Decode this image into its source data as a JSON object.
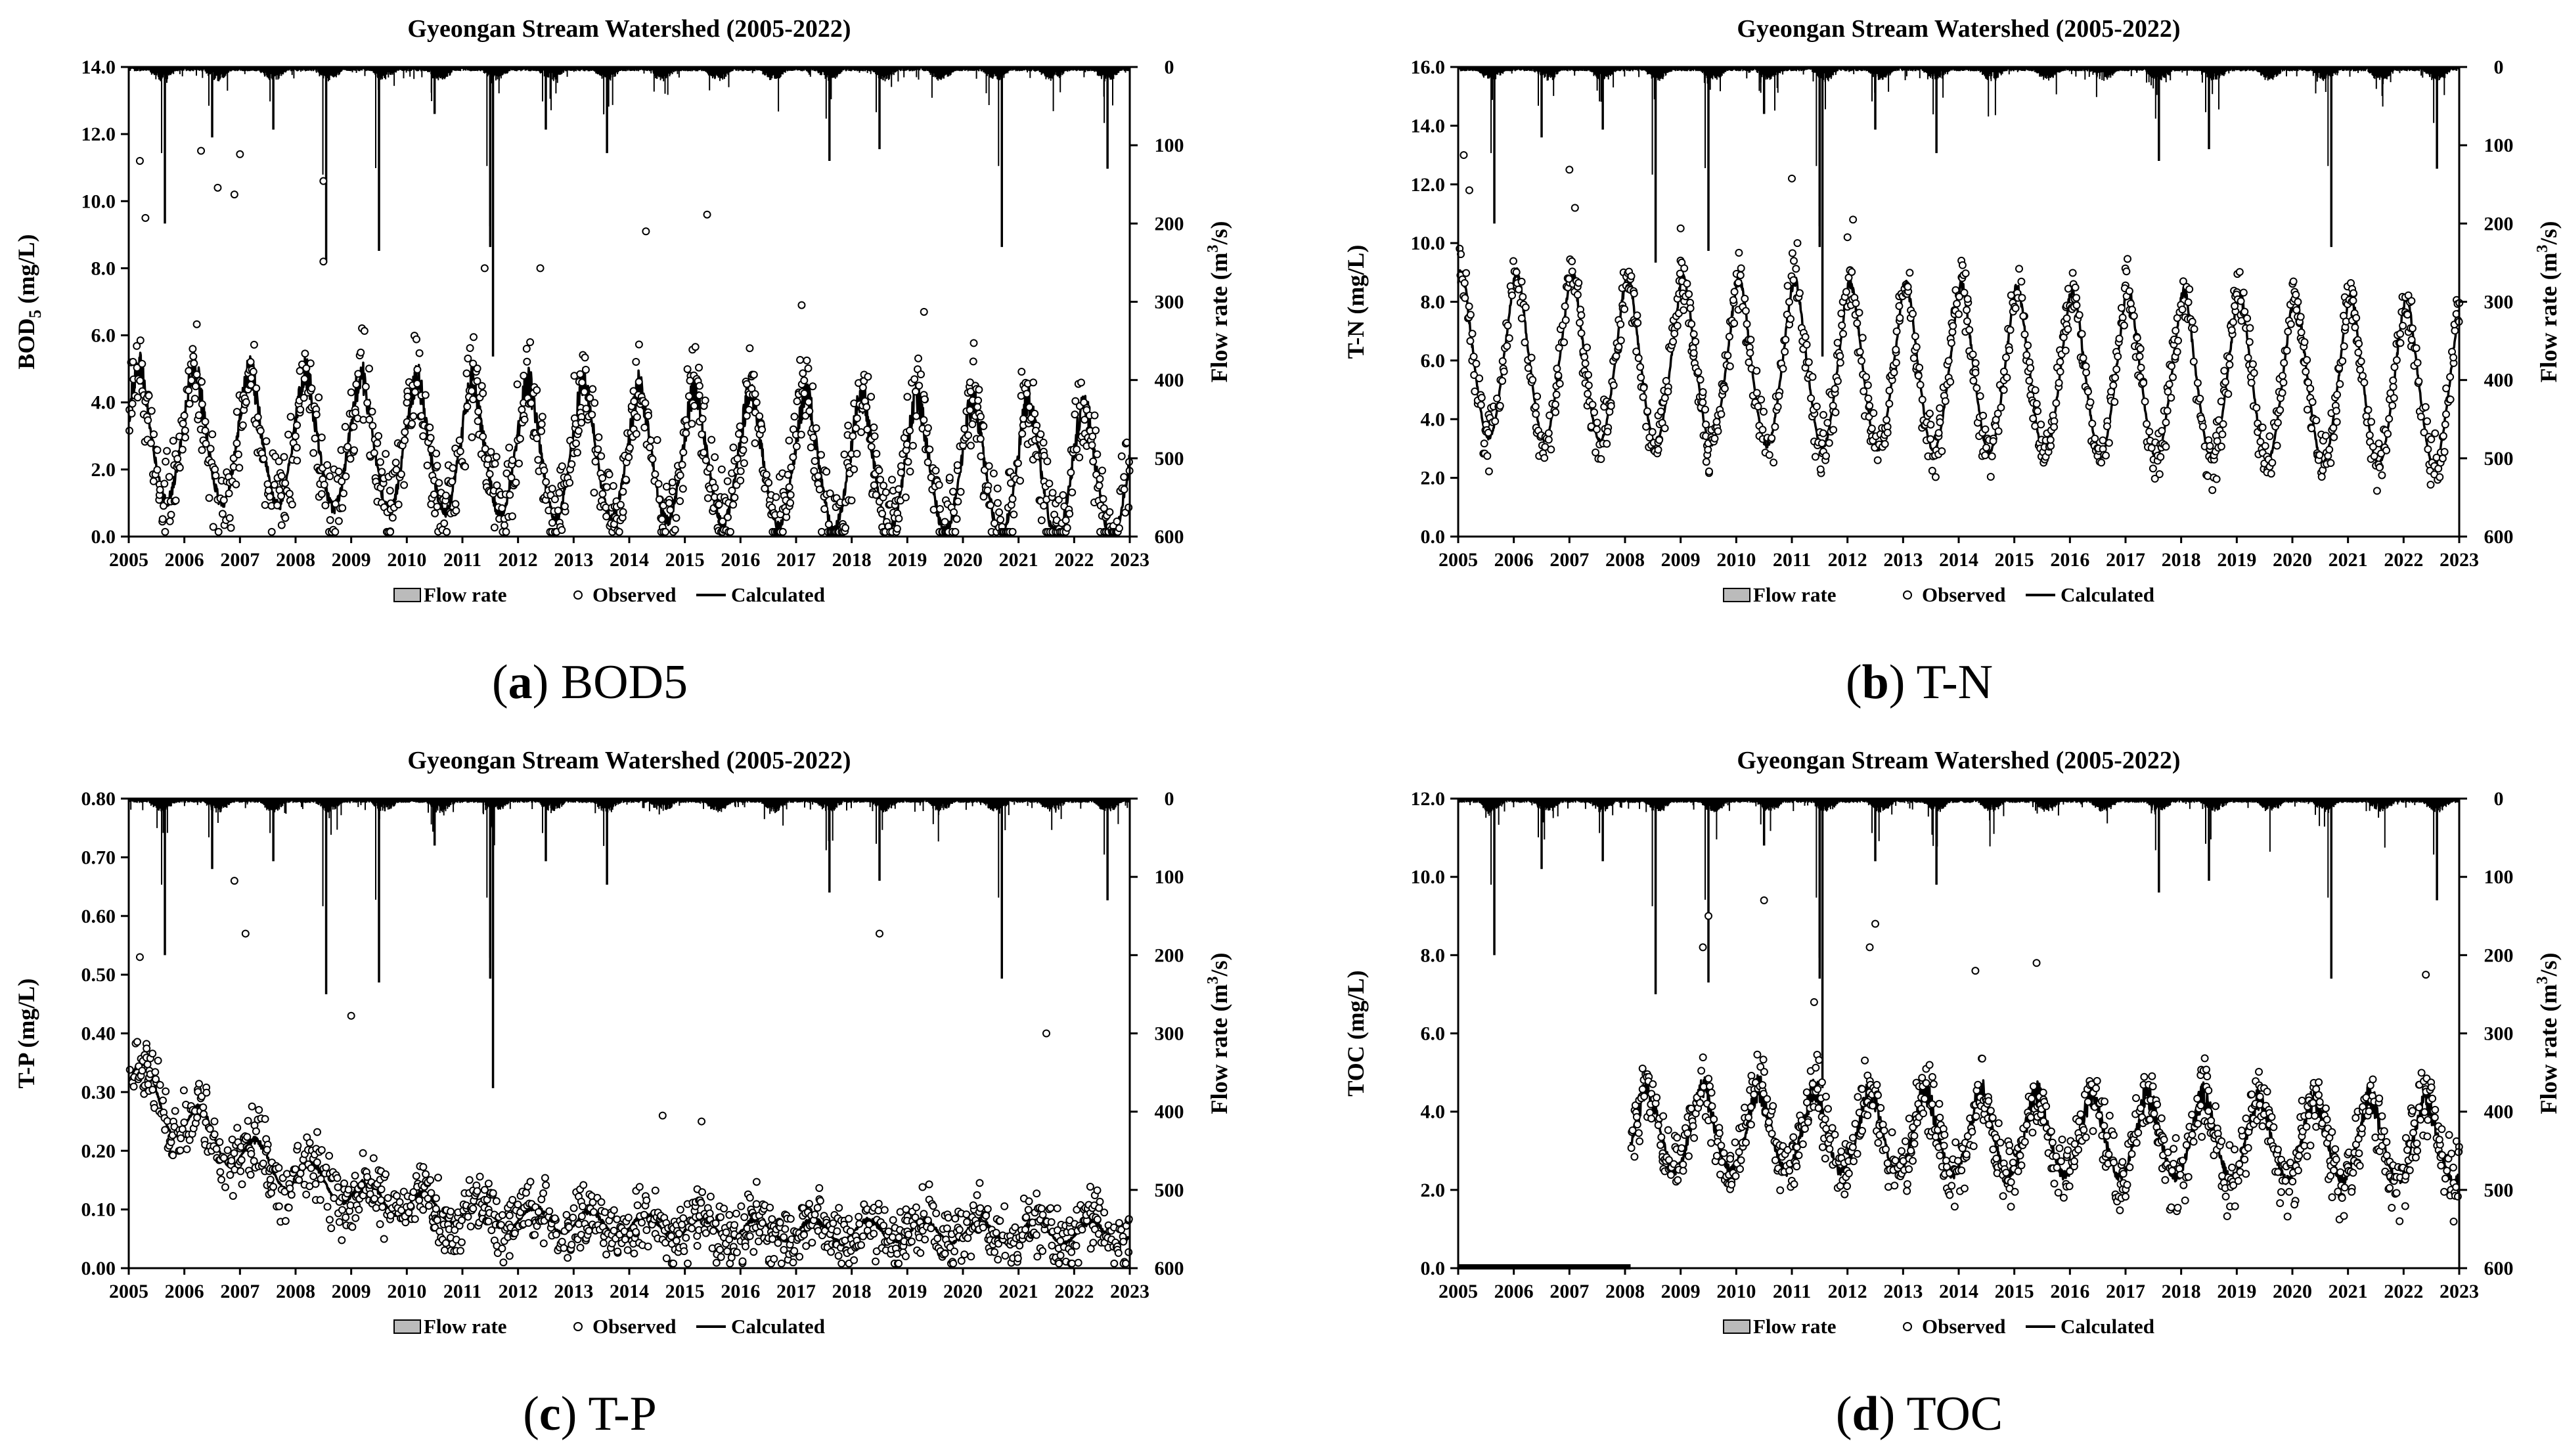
{
  "figure": {
    "panels": [
      {
        "id": "a",
        "caption_letter": "a",
        "caption_text": "BOD5"
      },
      {
        "id": "b",
        "caption_letter": "b",
        "caption_text": "T-N"
      },
      {
        "id": "c",
        "caption_letter": "c",
        "caption_text": "T-P"
      },
      {
        "id": "d",
        "caption_letter": "d",
        "caption_text": "TOC"
      }
    ]
  },
  "chart_data": [
    {
      "panel": "a",
      "type": "line",
      "title": "Gyeongan Stream Watershed (2005-2022)",
      "ylabel_left": "BOD",
      "ylabel_left_sub": "5",
      "ylabel_left_unit": " (mg/L)",
      "ylabel_right": "Flow rate (m",
      "ylabel_right_sup": "3",
      "ylabel_right_unit": "/s)",
      "ylim": [
        0,
        14
      ],
      "y_ticks": [
        "0.0",
        "2.0",
        "4.0",
        "6.0",
        "8.0",
        "10.0",
        "12.0",
        "14.0"
      ],
      "flow_ylim": [
        0,
        600
      ],
      "flow_ticks": [
        "0",
        "100",
        "200",
        "300",
        "400",
        "500",
        "600"
      ],
      "flow_reversed": true,
      "x_ticks": [
        "2005",
        "2006",
        "2007",
        "2008",
        "2009",
        "2010",
        "2011",
        "2012",
        "2013",
        "2014",
        "2015",
        "2016",
        "2017",
        "2018",
        "2019",
        "2020",
        "2021",
        "2022",
        "2023"
      ],
      "xlim": [
        2005,
        2023
      ],
      "legend": [
        "Flow rate",
        "Observed",
        "Calculated"
      ],
      "series": [
        {
          "name": "Calculated",
          "start": 2005.0,
          "base": 2.8,
          "decline": 1.2,
          "amp": 1.7,
          "peak_phase": 0.18,
          "noise": 0.7
        },
        {
          "name": "Observed",
          "start": 2005.0,
          "scatter": 1.3,
          "outliers": [
            [
              2005.2,
              11.2
            ],
            [
              2005.3,
              9.5
            ],
            [
              2006.3,
              11.5
            ],
            [
              2006.6,
              10.4
            ],
            [
              2006.9,
              10.2
            ],
            [
              2007.0,
              11.4
            ],
            [
              2008.5,
              10.6
            ],
            [
              2008.5,
              8.2
            ],
            [
              2011.4,
              8.0
            ],
            [
              2012.4,
              8.0
            ],
            [
              2014.3,
              9.1
            ],
            [
              2015.4,
              9.6
            ],
            [
              2017.1,
              6.9
            ],
            [
              2019.3,
              6.7
            ]
          ]
        }
      ],
      "flow_events": [
        [
          2005.65,
          200
        ],
        [
          2006.5,
          90
        ],
        [
          2007.6,
          80
        ],
        [
          2008.55,
          250
        ],
        [
          2009.5,
          235
        ],
        [
          2010.5,
          60
        ],
        [
          2011.55,
          370
        ],
        [
          2011.5,
          230
        ],
        [
          2012.5,
          80
        ],
        [
          2013.6,
          110
        ],
        [
          2017.6,
          120
        ],
        [
          2018.5,
          105
        ],
        [
          2020.7,
          230
        ],
        [
          2022.6,
          130
        ]
      ]
    },
    {
      "panel": "b",
      "type": "line",
      "title": "Gyeongan Stream Watershed (2005-2022)",
      "ylabel_left": "T-N (mg/L)",
      "ylabel_left_sub": "",
      "ylabel_left_unit": "",
      "ylabel_right": "Flow rate (m",
      "ylabel_right_sup": "3",
      "ylabel_right_unit": "/s)",
      "ylim": [
        0,
        16
      ],
      "y_ticks": [
        "0.0",
        "2.0",
        "4.0",
        "6.0",
        "8.0",
        "10.0",
        "12.0",
        "14.0",
        "16.0"
      ],
      "flow_ylim": [
        0,
        600
      ],
      "flow_ticks": [
        "0",
        "100",
        "200",
        "300",
        "400",
        "500",
        "600"
      ],
      "flow_reversed": true,
      "x_ticks": [
        "2005",
        "2006",
        "2007",
        "2008",
        "2009",
        "2010",
        "2011",
        "2012",
        "2013",
        "2014",
        "2015",
        "2016",
        "2017",
        "2018",
        "2019",
        "2020",
        "2021",
        "2022",
        "2023"
      ],
      "xlim": [
        2005,
        2023
      ],
      "legend": [
        "Flow rate",
        "Observed",
        "Calculated"
      ],
      "series": [
        {
          "name": "Calculated",
          "start": 2005.0,
          "base": 5.8,
          "decline": 1.0,
          "amp": 2.4,
          "peak_phase": 0.05,
          "noise": 0.25
        },
        {
          "name": "Observed",
          "start": 2005.0,
          "scatter": 0.9,
          "outliers": [
            [
              2005.1,
              13.0
            ],
            [
              2005.2,
              11.8
            ],
            [
              2007.0,
              12.5
            ],
            [
              2007.1,
              11.2
            ],
            [
              2009.0,
              10.5
            ],
            [
              2011.0,
              12.2
            ],
            [
              2011.1,
              10.0
            ],
            [
              2012.1,
              10.8
            ],
            [
              2012.0,
              10.2
            ]
          ]
        }
      ],
      "flow_events": [
        [
          2005.65,
          200
        ],
        [
          2006.5,
          90
        ],
        [
          2007.6,
          80
        ],
        [
          2008.55,
          250
        ],
        [
          2009.5,
          235
        ],
        [
          2010.5,
          60
        ],
        [
          2011.55,
          370
        ],
        [
          2011.5,
          230
        ],
        [
          2012.5,
          80
        ],
        [
          2013.6,
          110
        ],
        [
          2017.6,
          120
        ],
        [
          2018.5,
          105
        ],
        [
          2020.7,
          230
        ],
        [
          2022.6,
          130
        ]
      ]
    },
    {
      "panel": "c",
      "type": "line",
      "title": "Gyeongan Stream Watershed (2005-2022)",
      "ylabel_left": "T-P (mg/L)",
      "ylabel_left_sub": "",
      "ylabel_left_unit": "",
      "ylabel_right": "Flow rate (m",
      "ylabel_right_sup": "3",
      "ylabel_right_unit": "/s)",
      "ylim": [
        0,
        0.8
      ],
      "y_ticks": [
        "0.00",
        "0.10",
        "0.20",
        "0.30",
        "0.40",
        "0.50",
        "0.60",
        "0.70",
        "0.80"
      ],
      "flow_ylim": [
        0,
        600
      ],
      "flow_ticks": [
        "0",
        "100",
        "200",
        "300",
        "400",
        "500",
        "600"
      ],
      "flow_reversed": true,
      "x_ticks": [
        "2005",
        "2006",
        "2007",
        "2008",
        "2009",
        "2010",
        "2011",
        "2012",
        "2013",
        "2014",
        "2015",
        "2016",
        "2017",
        "2018",
        "2019",
        "2020",
        "2021",
        "2022",
        "2023"
      ],
      "xlim": [
        2005,
        2023
      ],
      "legend": [
        "Flow rate",
        "Observed",
        "Calculated"
      ],
      "series": [
        {
          "name": "Calculated",
          "start": 2005.0,
          "base": 0.06,
          "early_level": 0.33,
          "early_decay": 3.0,
          "amp": 0.018,
          "peak_phase": 0.3,
          "noise": 0.008
        },
        {
          "name": "Observed",
          "start": 2005.0,
          "scatter": 0.05,
          "outliers": [
            [
              2005.2,
              0.53
            ],
            [
              2006.9,
              0.66
            ],
            [
              2007.1,
              0.57
            ],
            [
              2009.0,
              0.43
            ],
            [
              2018.5,
              0.57
            ],
            [
              2021.5,
              0.4
            ],
            [
              2014.6,
              0.26
            ],
            [
              2015.3,
              0.25
            ]
          ]
        }
      ],
      "flow_events": [
        [
          2005.65,
          200
        ],
        [
          2006.5,
          90
        ],
        [
          2007.6,
          80
        ],
        [
          2008.55,
          250
        ],
        [
          2009.5,
          235
        ],
        [
          2010.5,
          60
        ],
        [
          2011.55,
          370
        ],
        [
          2011.5,
          230
        ],
        [
          2012.5,
          80
        ],
        [
          2013.6,
          110
        ],
        [
          2017.6,
          120
        ],
        [
          2018.5,
          105
        ],
        [
          2020.7,
          230
        ],
        [
          2022.6,
          130
        ]
      ]
    },
    {
      "panel": "d",
      "type": "line",
      "title": "Gyeongan Stream Watershed (2005-2022)",
      "ylabel_left": "TOC (mg/L)",
      "ylabel_left_sub": "",
      "ylabel_left_unit": "",
      "ylabel_right": "Flow rate (m",
      "ylabel_right_sup": "3",
      "ylabel_right_unit": "/s)",
      "ylim": [
        0,
        12
      ],
      "y_ticks": [
        "0.0",
        "2.0",
        "4.0",
        "6.0",
        "8.0",
        "10.0",
        "12.0"
      ],
      "flow_ylim": [
        0,
        600
      ],
      "flow_ticks": [
        "0",
        "100",
        "200",
        "300",
        "400",
        "500",
        "600"
      ],
      "flow_reversed": true,
      "x_ticks": [
        "2005",
        "2006",
        "2007",
        "2008",
        "2009",
        "2010",
        "2011",
        "2012",
        "2013",
        "2014",
        "2015",
        "2016",
        "2017",
        "2018",
        "2019",
        "2020",
        "2021",
        "2022",
        "2023"
      ],
      "xlim": [
        2005,
        2023
      ],
      "legend": [
        "Flow rate",
        "Observed",
        "Calculated"
      ],
      "zero_segment": [
        2005.0,
        2008.1
      ],
      "series": [
        {
          "name": "Calculated",
          "start": 2008.1,
          "base": 3.5,
          "decline": 0.4,
          "amp": 0.9,
          "peak_phase": 0.4,
          "noise": 0.5
        },
        {
          "name": "Observed",
          "start": 2008.1,
          "scatter": 0.8,
          "outliers": [
            [
              2009.5,
              9.0
            ],
            [
              2010.5,
              9.4
            ],
            [
              2009.4,
              8.2
            ],
            [
              2012.5,
              8.8
            ],
            [
              2012.4,
              8.2
            ],
            [
              2014.3,
              7.6
            ],
            [
              2015.4,
              7.8
            ],
            [
              2011.4,
              6.8
            ],
            [
              2022.4,
              7.5
            ]
          ]
        }
      ],
      "flow_events": [
        [
          2005.65,
          200
        ],
        [
          2006.5,
          90
        ],
        [
          2007.6,
          80
        ],
        [
          2008.55,
          250
        ],
        [
          2009.5,
          235
        ],
        [
          2010.5,
          60
        ],
        [
          2011.55,
          370
        ],
        [
          2011.5,
          230
        ],
        [
          2012.5,
          80
        ],
        [
          2013.6,
          110
        ],
        [
          2017.6,
          120
        ],
        [
          2018.5,
          105
        ],
        [
          2020.7,
          230
        ],
        [
          2022.6,
          130
        ]
      ]
    }
  ]
}
